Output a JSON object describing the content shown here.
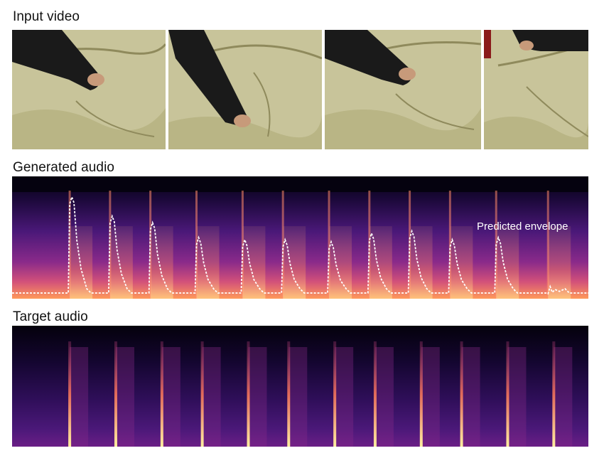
{
  "labels": {
    "input_video": "Input video",
    "generated_audio": "Generated audio",
    "target_audio": "Target audio",
    "predicted_envelope": "Predicted envelope"
  },
  "video_frames": [
    {
      "name": "frame-1"
    },
    {
      "name": "frame-2"
    },
    {
      "name": "frame-3"
    },
    {
      "name": "frame-4"
    }
  ],
  "colors": {
    "spectrogram_dark": "#0a0520",
    "spectrogram_mid": "#5a1a8a",
    "spectrogram_hot": "#ff9a5a",
    "envelope": "#ffffff",
    "cushion": "#c9c79a"
  },
  "generated_hits": [
    0.1,
    0.17,
    0.24,
    0.32,
    0.4,
    0.47,
    0.55,
    0.62,
    0.69,
    0.76,
    0.84,
    0.93
  ],
  "target_hits": [
    0.1,
    0.18,
    0.26,
    0.33,
    0.41,
    0.48,
    0.56,
    0.63,
    0.71,
    0.78,
    0.86,
    0.94
  ],
  "envelope_peaks": [
    0.9,
    0.72,
    0.66,
    0.52,
    0.5,
    0.5,
    0.48,
    0.56,
    0.58,
    0.5,
    0.52,
    0.06
  ]
}
